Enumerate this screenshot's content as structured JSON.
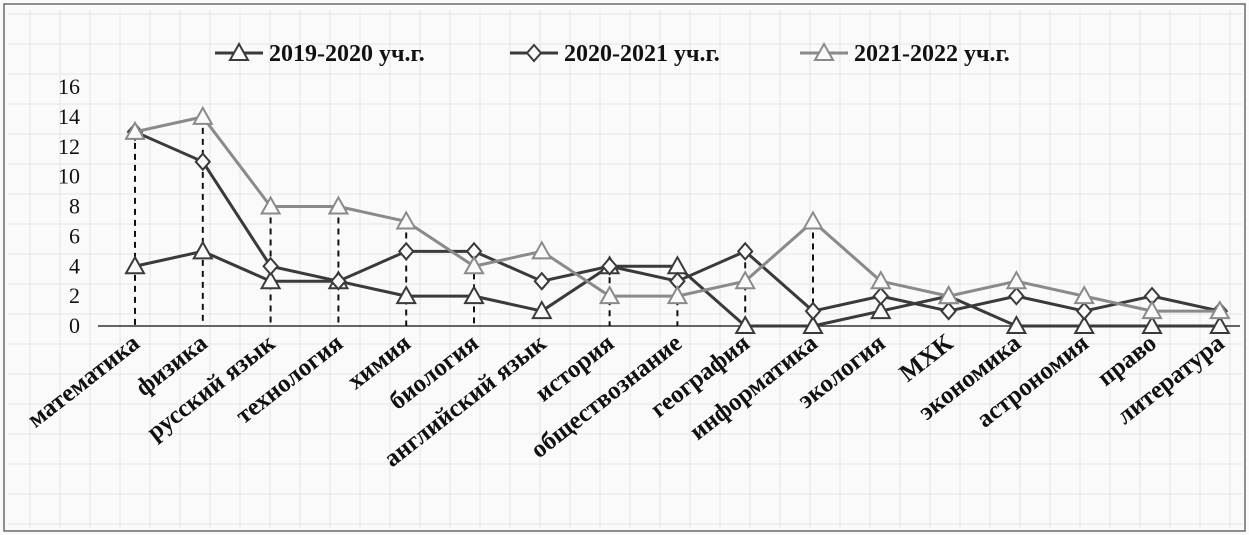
{
  "chart_data": {
    "type": "line",
    "title": "",
    "xlabel": "",
    "ylabel": "",
    "ylim": [
      0,
      16
    ],
    "yticks": [
      0,
      2,
      4,
      6,
      8,
      10,
      12,
      14,
      16
    ],
    "grid": true,
    "legend_position": "top",
    "categories": [
      "математика",
      "физика",
      "русский язык",
      "технология",
      "химия",
      "биология",
      "английский язык",
      "история",
      "обществознание",
      "география",
      "информатика",
      "экология",
      "МХК",
      "экономика",
      "астрономия",
      "право",
      "литература"
    ],
    "series": [
      {
        "name": "2019-2020 уч.г.",
        "marker": "triangle",
        "color": "#3a3a3a",
        "values": [
          4,
          5,
          3,
          3,
          2,
          2,
          1,
          4,
          4,
          0,
          0,
          1,
          2,
          0,
          0,
          0,
          0
        ]
      },
      {
        "name": "2020-2021 уч.г.",
        "marker": "diamond",
        "color": "#3a3a3a",
        "values": [
          13,
          11,
          4,
          3,
          5,
          5,
          3,
          4,
          3,
          5,
          1,
          2,
          1,
          2,
          1,
          2,
          1
        ]
      },
      {
        "name": "2021-2022 уч.г.",
        "marker": "triangle",
        "color": "#8a8a8a",
        "values": [
          13,
          14,
          8,
          8,
          7,
          4,
          5,
          2,
          2,
          3,
          7,
          3,
          2,
          3,
          2,
          1,
          1
        ]
      }
    ],
    "drop_lines": [
      "математика",
      "физика",
      "русский язык",
      "технология",
      "химия",
      "биология",
      "история",
      "обществознание",
      "география",
      "информатика"
    ]
  }
}
